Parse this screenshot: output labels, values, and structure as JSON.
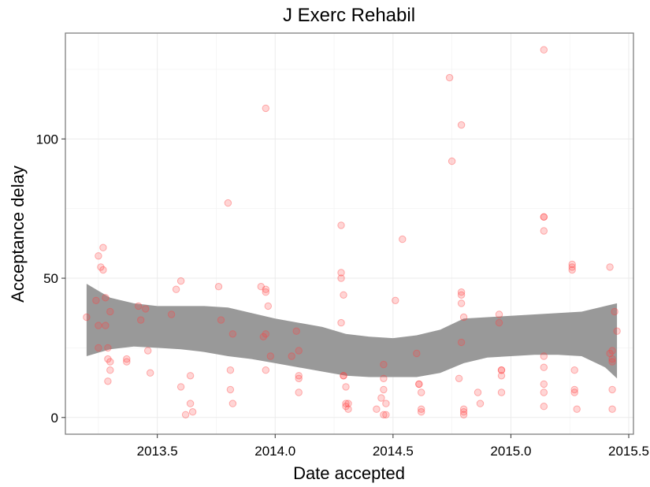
{
  "chart_data": {
    "type": "scatter",
    "title": "J Exerc Rehabil",
    "xlabel": "Date accepted",
    "ylabel": "Acceptance delay",
    "xlim": [
      3.11,
      5.52
    ],
    "ylim": [
      -6,
      138
    ],
    "x_ticks": [
      3.5,
      4.0,
      4.5,
      5.0,
      5.5
    ],
    "x_tick_labels": [
      "2013.5",
      "2014.0",
      "2014.5",
      "2015.0",
      "2015.5"
    ],
    "y_ticks": [
      0,
      50,
      100
    ],
    "y_tick_labels": [
      "0",
      "50",
      "100"
    ],
    "grid": true,
    "point_color": "#ff4040",
    "band_color": "#999999",
    "points": [
      [
        3.2,
        36
      ],
      [
        3.24,
        42
      ],
      [
        3.25,
        33
      ],
      [
        3.25,
        25
      ],
      [
        3.25,
        58
      ],
      [
        3.26,
        54
      ],
      [
        3.27,
        53
      ],
      [
        3.27,
        61
      ],
      [
        3.28,
        43
      ],
      [
        3.28,
        33
      ],
      [
        3.29,
        13
      ],
      [
        3.29,
        25
      ],
      [
        3.29,
        21
      ],
      [
        3.3,
        38
      ],
      [
        3.3,
        20
      ],
      [
        3.3,
        17
      ],
      [
        3.37,
        21
      ],
      [
        3.37,
        20
      ],
      [
        3.42,
        40
      ],
      [
        3.43,
        35
      ],
      [
        3.45,
        39
      ],
      [
        3.46,
        24
      ],
      [
        3.47,
        16
      ],
      [
        3.56,
        37
      ],
      [
        3.58,
        46
      ],
      [
        3.6,
        49
      ],
      [
        3.6,
        11
      ],
      [
        3.62,
        1
      ],
      [
        3.64,
        5
      ],
      [
        3.64,
        15
      ],
      [
        3.65,
        2
      ],
      [
        3.76,
        47
      ],
      [
        3.77,
        35
      ],
      [
        3.8,
        77
      ],
      [
        3.81,
        10
      ],
      [
        3.81,
        17
      ],
      [
        3.82,
        30
      ],
      [
        3.82,
        5
      ],
      [
        3.94,
        47
      ],
      [
        3.95,
        29
      ],
      [
        3.96,
        46
      ],
      [
        3.96,
        45
      ],
      [
        3.96,
        30
      ],
      [
        3.96,
        17
      ],
      [
        3.96,
        111
      ],
      [
        3.97,
        40
      ],
      [
        3.98,
        22
      ],
      [
        4.07,
        22
      ],
      [
        4.09,
        31
      ],
      [
        4.1,
        24
      ],
      [
        4.1,
        15
      ],
      [
        4.1,
        14
      ],
      [
        4.1,
        9
      ],
      [
        4.28,
        69
      ],
      [
        4.28,
        52
      ],
      [
        4.28,
        50
      ],
      [
        4.28,
        34
      ],
      [
        4.29,
        44
      ],
      [
        4.29,
        15
      ],
      [
        4.29,
        15
      ],
      [
        4.3,
        5
      ],
      [
        4.3,
        4
      ],
      [
        4.3,
        11
      ],
      [
        4.31,
        3
      ],
      [
        4.31,
        5
      ],
      [
        4.43,
        3
      ],
      [
        4.45,
        7
      ],
      [
        4.46,
        19
      ],
      [
        4.46,
        10
      ],
      [
        4.46,
        14
      ],
      [
        4.46,
        1
      ],
      [
        4.47,
        1
      ],
      [
        4.47,
        5
      ],
      [
        4.51,
        42
      ],
      [
        4.54,
        64
      ],
      [
        4.6,
        23
      ],
      [
        4.61,
        12
      ],
      [
        4.61,
        12
      ],
      [
        4.62,
        3
      ],
      [
        4.62,
        9
      ],
      [
        4.62,
        2
      ],
      [
        4.74,
        122
      ],
      [
        4.75,
        92
      ],
      [
        4.78,
        14
      ],
      [
        4.79,
        105
      ],
      [
        4.79,
        45
      ],
      [
        4.79,
        44
      ],
      [
        4.79,
        41
      ],
      [
        4.79,
        27
      ],
      [
        4.8,
        36
      ],
      [
        4.8,
        3
      ],
      [
        4.8,
        2
      ],
      [
        4.8,
        1
      ],
      [
        4.86,
        9
      ],
      [
        4.87,
        5
      ],
      [
        4.95,
        37
      ],
      [
        4.95,
        34
      ],
      [
        4.96,
        17
      ],
      [
        4.96,
        17
      ],
      [
        4.96,
        15
      ],
      [
        4.96,
        9
      ],
      [
        5.14,
        132
      ],
      [
        5.14,
        72
      ],
      [
        5.14,
        72
      ],
      [
        5.14,
        67
      ],
      [
        5.14,
        22
      ],
      [
        5.14,
        18
      ],
      [
        5.14,
        12
      ],
      [
        5.14,
        9
      ],
      [
        5.14,
        4
      ],
      [
        5.26,
        55
      ],
      [
        5.26,
        54
      ],
      [
        5.26,
        53
      ],
      [
        5.27,
        17
      ],
      [
        5.27,
        10
      ],
      [
        5.27,
        9
      ],
      [
        5.28,
        3
      ],
      [
        5.42,
        54
      ],
      [
        5.42,
        23
      ],
      [
        5.43,
        24
      ],
      [
        5.43,
        20
      ],
      [
        5.43,
        21
      ],
      [
        5.43,
        10
      ],
      [
        5.43,
        3
      ],
      [
        5.44,
        38
      ],
      [
        5.45,
        31
      ]
    ],
    "band": {
      "x": [
        3.2,
        3.3,
        3.4,
        3.5,
        3.6,
        3.7,
        3.8,
        3.9,
        4.0,
        4.1,
        4.2,
        4.3,
        4.4,
        4.5,
        4.6,
        4.7,
        4.8,
        4.9,
        5.0,
        5.1,
        5.2,
        5.3,
        5.4,
        5.45
      ],
      "upper": [
        48,
        43,
        41,
        40,
        40,
        40,
        39.5,
        37.5,
        35.5,
        34,
        32.5,
        30,
        29,
        28.5,
        29.5,
        31.5,
        35.5,
        36,
        36.5,
        37,
        37.5,
        38,
        40,
        41
      ],
      "lower": [
        22,
        24.5,
        25.5,
        25,
        24.5,
        23.5,
        22,
        21,
        19.5,
        18,
        16.5,
        15,
        14.5,
        14.5,
        14.5,
        16,
        19.5,
        21.5,
        22,
        22.5,
        22.5,
        22,
        18,
        14
      ]
    }
  }
}
